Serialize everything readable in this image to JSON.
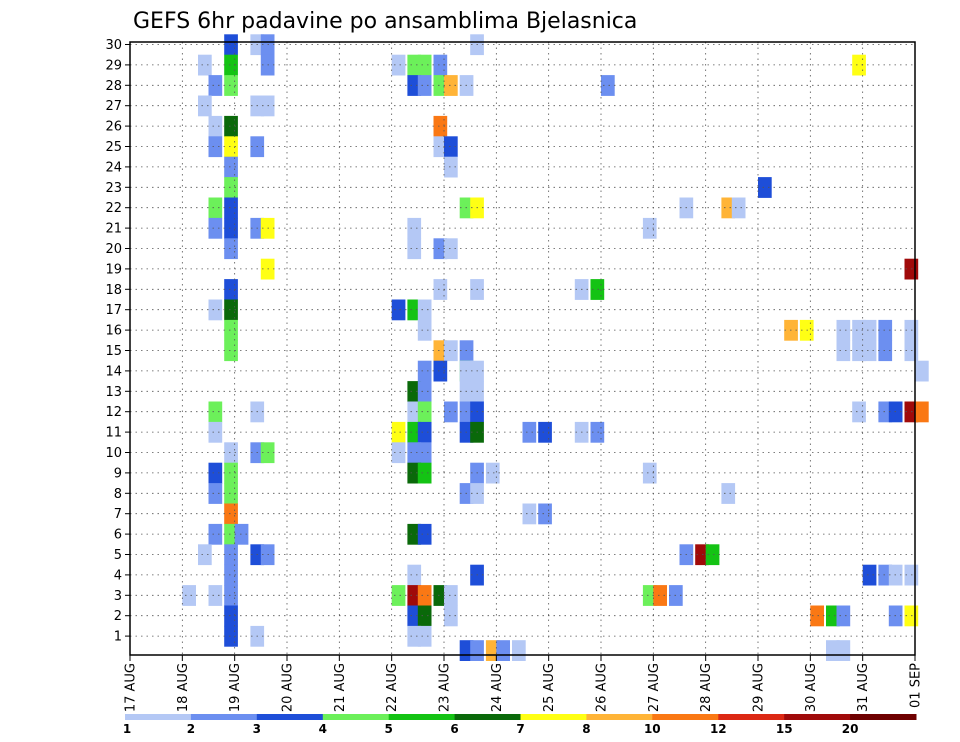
{
  "chart_data": {
    "type": "heatmap",
    "title": "GEFS 6hr padavine po ansamblima Bjelasnica",
    "xlabel": "",
    "ylabel": "",
    "x_tick_labels": [
      "17 AUG",
      "18 AUG",
      "19 AUG",
      "20 AUG",
      "21 AUG",
      "22 AUG",
      "23 AUG",
      "24 AUG",
      "25 AUG",
      "26 AUG",
      "27 AUG",
      "28 AUG",
      "29 AUG",
      "30 AUG",
      "31 AUG",
      "01 SEP"
    ],
    "y_tick_labels": [
      "1",
      "2",
      "3",
      "4",
      "5",
      "6",
      "7",
      "8",
      "9",
      "10",
      "11",
      "12",
      "13",
      "14",
      "15",
      "16",
      "17",
      "18",
      "19",
      "20",
      "21",
      "22",
      "23",
      "24",
      "25",
      "26",
      "27",
      "28",
      "29",
      "30"
    ],
    "x_range_days": [
      0,
      15
    ],
    "y_range": [
      0.3,
      30.4
    ],
    "grid": true,
    "colorbar": {
      "labels": [
        "1",
        "2",
        "3",
        "4",
        "5",
        "6",
        "7",
        "8",
        "10",
        "12",
        "15",
        "20"
      ],
      "colors": [
        "#b4c8f5",
        "#6c8ff0",
        "#1e4ed8",
        "#6cf05a",
        "#14c314",
        "#0a690a",
        "#ffff14",
        "#ffb437",
        "#fa7814",
        "#dc2814",
        "#a00a0a",
        "#6e0000"
      ]
    },
    "cells": [
      [
        17.5,
        1.8,
        30,
        3
      ],
      [
        17.5,
        1.3,
        29,
        1
      ],
      [
        17.5,
        1.8,
        29,
        5
      ],
      [
        17.5,
        1.5,
        28,
        2
      ],
      [
        17.5,
        1.8,
        28,
        4
      ],
      [
        17.5,
        1.3,
        27,
        1
      ],
      [
        17.5,
        1.5,
        26,
        1
      ],
      [
        17.5,
        1.8,
        26,
        6
      ],
      [
        17.5,
        1.5,
        25,
        2
      ],
      [
        17.5,
        1.8,
        25,
        7
      ],
      [
        17.5,
        1.8,
        24,
        2
      ],
      [
        17.5,
        1.8,
        23,
        4
      ],
      [
        17.5,
        1.5,
        22,
        4
      ],
      [
        17.5,
        1.8,
        22,
        3
      ],
      [
        17.5,
        1.5,
        21,
        2
      ],
      [
        17.5,
        1.8,
        21,
        3
      ],
      [
        17.5,
        1.8,
        20,
        2
      ],
      [
        17.5,
        1.8,
        18,
        3
      ],
      [
        17.5,
        1.5,
        17,
        1
      ],
      [
        17.5,
        1.8,
        17,
        6
      ],
      [
        17.5,
        1.8,
        16,
        4
      ],
      [
        17.5,
        1.8,
        15,
        4
      ],
      [
        17.5,
        1.5,
        12,
        4
      ],
      [
        17.5,
        1.5,
        11,
        1
      ],
      [
        17.5,
        1.8,
        10,
        1
      ],
      [
        17.5,
        1.5,
        9,
        3
      ],
      [
        17.5,
        1.8,
        9,
        4
      ],
      [
        17.5,
        1.5,
        8,
        2
      ],
      [
        17.5,
        1.8,
        8,
        4
      ],
      [
        17.5,
        1.8,
        7,
        9
      ],
      [
        17.5,
        1.5,
        6,
        2
      ],
      [
        17.5,
        1.8,
        6,
        4
      ],
      [
        17.5,
        2,
        6,
        2
      ],
      [
        17.5,
        1.3,
        5,
        1
      ],
      [
        17.5,
        1.8,
        5,
        2
      ],
      [
        17.5,
        1.8,
        4,
        2
      ],
      [
        17.5,
        1,
        3,
        1
      ],
      [
        17.5,
        1.5,
        3,
        1
      ],
      [
        17.5,
        1.8,
        3,
        2
      ],
      [
        17.5,
        1.8,
        2,
        3
      ],
      [
        17.5,
        1.8,
        1,
        3
      ],
      [
        18.5,
        2.3,
        30,
        1
      ],
      [
        18.5,
        2.5,
        30,
        2
      ],
      [
        18.5,
        2.5,
        29,
        2
      ],
      [
        18.5,
        2.3,
        27,
        1
      ],
      [
        18.5,
        2.5,
        27,
        1
      ],
      [
        18.5,
        2.3,
        25,
        2
      ],
      [
        18.5,
        2.3,
        21,
        2
      ],
      [
        18.5,
        2.5,
        21,
        7
      ],
      [
        18.5,
        2.5,
        19,
        7
      ],
      [
        18.5,
        2.3,
        12,
        1
      ],
      [
        18.5,
        2.3,
        10,
        2
      ],
      [
        18.5,
        2.5,
        10,
        4
      ],
      [
        18.5,
        2.3,
        5,
        3
      ],
      [
        18.5,
        2.5,
        5,
        2
      ],
      [
        18.5,
        2.3,
        1,
        1
      ],
      [
        22.5,
        5,
        29,
        1
      ],
      [
        22.5,
        5.3,
        29,
        4
      ],
      [
        22.5,
        5.5,
        29,
        4
      ],
      [
        22.5,
        5.8,
        29,
        2
      ],
      [
        22.5,
        5.3,
        28,
        3
      ],
      [
        22.5,
        5.5,
        28,
        2
      ],
      [
        22.5,
        5.8,
        28,
        4
      ],
      [
        22.5,
        6,
        28,
        8
      ],
      [
        22.5,
        6.3,
        28,
        1
      ],
      [
        22.5,
        5.8,
        26,
        9
      ],
      [
        22.5,
        5.8,
        25,
        1
      ],
      [
        22.5,
        6,
        25,
        3
      ],
      [
        22.5,
        6,
        24,
        1
      ],
      [
        22.5,
        5.3,
        21,
        1
      ],
      [
        22.5,
        5.3,
        20,
        1
      ],
      [
        22.5,
        5.8,
        20,
        2
      ],
      [
        22.5,
        6,
        20,
        1
      ],
      [
        22.5,
        5.8,
        18,
        1
      ],
      [
        22.5,
        5,
        17,
        3
      ],
      [
        22.5,
        5.3,
        17,
        5
      ],
      [
        22.5,
        5.5,
        17,
        1
      ],
      [
        22.5,
        5.5,
        16,
        1
      ],
      [
        22.5,
        5.8,
        15,
        8
      ],
      [
        22.5,
        6,
        15,
        1
      ],
      [
        22.5,
        6.3,
        15,
        2
      ],
      [
        22.5,
        5.5,
        14,
        2
      ],
      [
        22.5,
        5.8,
        14,
        3
      ],
      [
        22.5,
        5.3,
        13,
        6
      ],
      [
        22.5,
        5.5,
        13,
        2
      ],
      [
        22.5,
        5.3,
        12,
        1
      ],
      [
        22.5,
        5.5,
        12,
        4
      ],
      [
        22.5,
        5,
        11,
        7
      ],
      [
        22.5,
        5.3,
        11,
        5
      ],
      [
        22.5,
        5.5,
        11,
        3
      ],
      [
        22.5,
        5,
        10,
        1
      ],
      [
        22.5,
        5.3,
        10,
        2
      ],
      [
        22.5,
        5.5,
        10,
        2
      ],
      [
        22.5,
        5.3,
        9,
        6
      ],
      [
        22.5,
        5.5,
        9,
        5
      ],
      [
        22.5,
        5.3,
        6,
        6
      ],
      [
        22.5,
        5.5,
        6,
        3
      ],
      [
        22.5,
        5.3,
        4,
        1
      ],
      [
        22.5,
        5,
        3,
        4
      ],
      [
        22.5,
        5.3,
        3,
        11
      ],
      [
        22.5,
        5.5,
        3,
        9
      ],
      [
        22.5,
        5.8,
        3,
        6
      ],
      [
        22.5,
        6,
        3,
        1
      ],
      [
        22.5,
        5.3,
        2,
        3
      ],
      [
        22.5,
        5.5,
        2,
        6
      ],
      [
        22.5,
        6,
        2,
        1
      ],
      [
        22.5,
        5.3,
        1,
        1
      ],
      [
        22.5,
        5.5,
        1,
        1
      ],
      [
        23.5,
        6.5,
        30,
        1
      ],
      [
        23.5,
        6.3,
        22,
        4
      ],
      [
        23.5,
        6.5,
        22,
        7
      ],
      [
        23.5,
        6.5,
        18,
        1
      ],
      [
        23.5,
        6.3,
        14,
        4
      ],
      [
        23.5,
        6.3,
        14,
        1
      ],
      [
        23.5,
        6.5,
        14,
        1
      ],
      [
        23.5,
        6.3,
        13,
        1
      ],
      [
        23.5,
        6.5,
        13,
        1
      ],
      [
        23.5,
        6,
        12,
        2
      ],
      [
        23.5,
        6.3,
        12,
        2
      ],
      [
        23.5,
        6.5,
        12,
        3
      ],
      [
        23.5,
        6.3,
        11,
        3
      ],
      [
        23.5,
        6.5,
        11,
        6
      ],
      [
        23.5,
        6.5,
        9,
        2
      ],
      [
        23.5,
        6.8,
        9,
        1
      ],
      [
        23.5,
        6.3,
        8,
        2
      ],
      [
        23.5,
        6.5,
        8,
        1
      ],
      [
        23.5,
        6.5,
        4,
        3
      ],
      [
        23.5,
        6.3,
        0.3,
        3
      ],
      [
        23.5,
        6.5,
        0.3,
        2
      ],
      [
        23.5,
        6.8,
        0.3,
        8
      ],
      [
        23.5,
        7,
        0.3,
        2
      ],
      [
        23.5,
        7.3,
        0.3,
        1
      ],
      [
        24.5,
        7.5,
        11,
        2
      ],
      [
        24.5,
        7.8,
        11,
        3
      ],
      [
        24.5,
        7.5,
        7,
        1
      ],
      [
        24.5,
        7.8,
        7,
        2
      ],
      [
        25.5,
        8.5,
        18,
        1
      ],
      [
        25.5,
        8.8,
        18,
        5
      ],
      [
        25.5,
        8.5,
        11,
        1
      ],
      [
        25.5,
        8.8,
        11,
        2
      ],
      [
        25.5,
        9,
        28,
        2
      ],
      [
        26.5,
        9.8,
        21,
        1
      ],
      [
        26.5,
        9.8,
        9,
        1
      ],
      [
        26.5,
        9.8,
        3,
        4
      ],
      [
        26.5,
        10,
        3,
        9
      ],
      [
        26.5,
        10.3,
        3,
        2
      ],
      [
        27.5,
        10.5,
        22,
        1
      ],
      [
        27.5,
        10.5,
        5,
        2
      ],
      [
        27.5,
        10.8,
        5,
        11
      ],
      [
        27.5,
        11,
        5,
        5
      ],
      [
        27.5,
        11.3,
        22,
        8
      ],
      [
        27.5,
        11.5,
        22,
        1
      ],
      [
        27.5,
        11.3,
        8,
        1
      ],
      [
        28.5,
        12,
        23,
        3
      ],
      [
        29.5,
        12.5,
        16,
        8
      ],
      [
        29.5,
        12.8,
        16,
        7
      ],
      [
        29.5,
        13,
        2,
        9
      ],
      [
        29.5,
        13.3,
        2,
        5
      ],
      [
        29.5,
        13.5,
        2,
        2
      ],
      [
        29.5,
        13.3,
        0.3,
        1
      ],
      [
        29.5,
        13.5,
        0.3,
        1
      ],
      [
        30.5,
        13.8,
        29,
        7
      ],
      [
        30.5,
        13.5,
        16,
        1
      ],
      [
        30.5,
        13.8,
        16,
        1
      ],
      [
        30.5,
        14,
        16,
        1
      ],
      [
        30.5,
        13.5,
        15,
        1
      ],
      [
        30.5,
        13.8,
        15,
        1
      ],
      [
        30.5,
        14,
        15,
        1
      ],
      [
        30.5,
        13.8,
        12,
        1
      ],
      [
        30.5,
        14.3,
        16,
        2
      ],
      [
        30.5,
        14.3,
        15,
        2
      ],
      [
        30.5,
        14.3,
        12,
        2
      ],
      [
        30.5,
        14.5,
        12,
        3
      ],
      [
        30.5,
        14.8,
        12,
        11
      ],
      [
        30.5,
        15,
        12,
        9
      ],
      [
        30.5,
        14.8,
        16,
        1
      ],
      [
        30.5,
        14.8,
        15,
        1
      ],
      [
        30.5,
        15,
        14,
        1
      ],
      [
        30.5,
        14,
        4,
        3
      ],
      [
        30.5,
        14.3,
        4,
        2
      ],
      [
        30.5,
        14.5,
        4,
        1
      ],
      [
        30.5,
        14.8,
        4,
        1
      ],
      [
        30.5,
        14.5,
        2,
        2
      ],
      [
        30.5,
        14.8,
        2,
        7
      ],
      [
        30.5,
        14.8,
        19,
        11
      ]
    ]
  }
}
